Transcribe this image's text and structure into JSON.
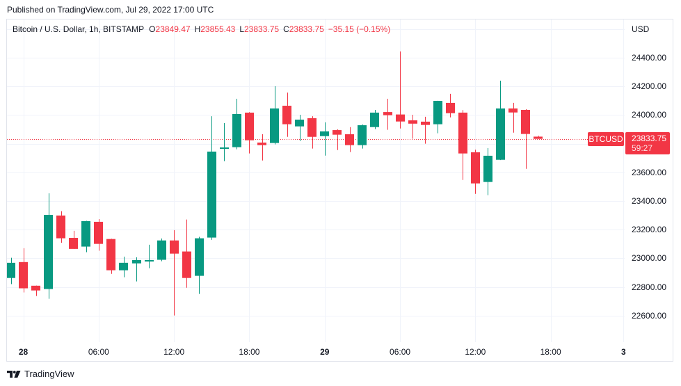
{
  "header": {
    "published": "Published on TradingView.com, Jul 29, 2022 17:00 UTC"
  },
  "legend": {
    "symbol": "Bitcoin / U.S. Dollar, 1h, BITSTAMP",
    "open_label": "O",
    "open": "23849.47",
    "high_label": "H",
    "high": "23855.43",
    "low_label": "L",
    "low": "23833.75",
    "close_label": "C",
    "close": "23833.75",
    "change": "−35.15 (−0.15%)"
  },
  "price_axis": {
    "currency": "USD",
    "gridlines": [
      24600,
      24400,
      24200,
      24000,
      23800,
      23600,
      23400,
      23200,
      23000,
      22800,
      22600
    ],
    "labels": [
      {
        "value": 24400,
        "text": "24400.00"
      },
      {
        "value": 24200,
        "text": "24200.00"
      },
      {
        "value": 24000,
        "text": "24000.00"
      },
      {
        "value": 23600,
        "text": "23600.00"
      },
      {
        "value": 23400,
        "text": "23400.00"
      },
      {
        "value": 23200,
        "text": "23200.00"
      },
      {
        "value": 23000,
        "text": "23000.00"
      },
      {
        "value": 22800,
        "text": "22800.00"
      },
      {
        "value": 22600,
        "text": "22600.00"
      }
    ]
  },
  "last_price": {
    "symbol": "BTCUSD",
    "price": "23833.75",
    "value": 23833.75,
    "countdown": "59:27"
  },
  "time_axis": {
    "ticks": [
      {
        "index": 1,
        "text": "28",
        "bold": true
      },
      {
        "index": 7,
        "text": "06:00",
        "bold": false
      },
      {
        "index": 13,
        "text": "12:00",
        "bold": false
      },
      {
        "index": 19,
        "text": "18:00",
        "bold": false
      },
      {
        "index": 25,
        "text": "29",
        "bold": true
      },
      {
        "index": 31,
        "text": "06:00",
        "bold": false
      },
      {
        "index": 37,
        "text": "12:00",
        "bold": false
      },
      {
        "index": 43,
        "text": "18:00",
        "bold": false
      },
      {
        "index": 48.8,
        "text": "3",
        "bold": true
      }
    ]
  },
  "footer": {
    "brand": "TradingView"
  },
  "colors": {
    "up": "#089981",
    "down": "#f23645",
    "grid": "#f0f3fa",
    "frame": "#e0e3eb",
    "text": "#131722"
  },
  "chart_data": {
    "type": "bar",
    "subtype": "candlestick",
    "title": "Bitcoin / U.S. Dollar, 1h, BITSTAMP",
    "xlabel": "",
    "ylabel": "USD",
    "ylim": [
      22415,
      24667
    ],
    "grid": true,
    "legend_position": "top-left",
    "y_ticks": [
      22600,
      22800,
      23000,
      23200,
      23400,
      23600,
      24000,
      24200,
      24400
    ],
    "x_tick_labels": [
      "28",
      "06:00",
      "12:00",
      "18:00",
      "29",
      "06:00",
      "12:00",
      "18:00",
      "3"
    ],
    "last_price": 23833.75,
    "x": [
      "Jul 27 23:00",
      "Jul 28 00:00",
      "Jul 28 01:00",
      "Jul 28 02:00",
      "Jul 28 03:00",
      "Jul 28 04:00",
      "Jul 28 05:00",
      "Jul 28 06:00",
      "Jul 28 07:00",
      "Jul 28 08:00",
      "Jul 28 09:00",
      "Jul 28 10:00",
      "Jul 28 11:00",
      "Jul 28 12:00",
      "Jul 28 13:00",
      "Jul 28 14:00",
      "Jul 28 15:00",
      "Jul 28 16:00",
      "Jul 28 17:00",
      "Jul 28 18:00",
      "Jul 28 19:00",
      "Jul 28 20:00",
      "Jul 28 21:00",
      "Jul 28 22:00",
      "Jul 28 23:00",
      "Jul 29 00:00",
      "Jul 29 01:00",
      "Jul 29 02:00",
      "Jul 29 03:00",
      "Jul 29 04:00",
      "Jul 29 05:00",
      "Jul 29 06:00",
      "Jul 29 07:00",
      "Jul 29 08:00",
      "Jul 29 09:00",
      "Jul 29 10:00",
      "Jul 29 11:00",
      "Jul 29 12:00",
      "Jul 29 13:00",
      "Jul 29 14:00",
      "Jul 29 15:00",
      "Jul 29 16:00",
      "Jul 29 17:00"
    ],
    "series": [
      {
        "name": "open",
        "values": [
          22863,
          22974,
          22809,
          22786,
          23299,
          23143,
          23082,
          23255,
          23135,
          22917,
          22965,
          22978,
          22990,
          23125,
          23048,
          22878,
          23145,
          23764,
          23776,
          24017,
          23808,
          23805,
          24065,
          23921,
          23978,
          23853,
          23895,
          23866,
          23790,
          23916,
          24021,
          24004,
          23963,
          23954,
          23936,
          24085,
          24017,
          23740,
          23533,
          23688,
          24046,
          24036,
          23849.47
        ]
      },
      {
        "name": "high",
        "values": [
          23004,
          23071,
          22810,
          23454,
          23329,
          23192,
          23262,
          23274,
          23137,
          23012,
          23007,
          23095,
          23139,
          23197,
          23271,
          23150,
          23992,
          23944,
          24114,
          24020,
          23866,
          24201,
          24157,
          24002,
          23992,
          23949,
          23900,
          23916,
          23934,
          24036,
          24114,
          24444,
          24002,
          23988,
          24100,
          24148,
          24035,
          23758,
          23769,
          24240,
          24085,
          24041,
          23855.43
        ]
      },
      {
        "name": "low",
        "values": [
          22820,
          22762,
          22737,
          22718,
          23109,
          23066,
          23043,
          23053,
          22892,
          22868,
          22839,
          22931,
          22980,
          22601,
          22795,
          22752,
          23129,
          23678,
          23761,
          23732,
          23683,
          23795,
          23848,
          23819,
          23766,
          23717,
          23756,
          23742,
          23766,
          23902,
          23897,
          23906,
          23835,
          23800,
          23873,
          23984,
          23547,
          23450,
          23441,
          23686,
          23877,
          23625,
          23833.75
        ]
      },
      {
        "name": "close",
        "values": [
          22969,
          22791,
          22776,
          23303,
          23140,
          23066,
          23260,
          23101,
          22917,
          22969,
          22988,
          22988,
          23125,
          23033,
          22863,
          23140,
          23745,
          23774,
          24007,
          23824,
          23790,
          24046,
          23936,
          23968,
          23848,
          23886,
          23863,
          23790,
          23929,
          24017,
          23999,
          23955,
          23940,
          23931,
          24099,
          24013,
          23732,
          23523,
          23716,
          24046,
          24018,
          23868,
          23833.75
        ]
      }
    ]
  }
}
